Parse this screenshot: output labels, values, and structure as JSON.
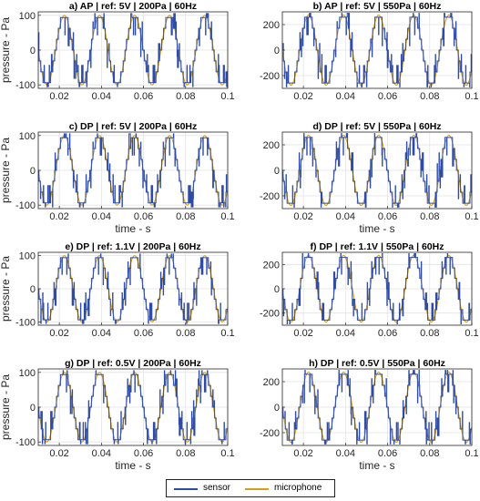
{
  "chart_data": [
    {
      "type": "line",
      "panel": "a",
      "title": "a) AP | ref: 5V | 200Pa | 60Hz",
      "xlabel": "",
      "ylabel": "pressure - Pa",
      "xlim": [
        0.01,
        0.1
      ],
      "ylim": [
        -110,
        110
      ],
      "xticks": [
        0.02,
        0.04,
        0.06,
        0.08,
        0.1
      ],
      "xtick_labels": [
        "0.02",
        "0.04",
        "0.06",
        "0.08",
        "0.1"
      ],
      "yticks": [
        -100,
        0,
        100
      ],
      "ytick_labels": [
        "-100",
        "0",
        "100"
      ],
      "grid": true,
      "amplitude": 100,
      "frequency_hz": 60,
      "series": [
        {
          "name": "sensor",
          "color": "#2E4BA6"
        },
        {
          "name": "microphone",
          "color": "#D4A017"
        }
      ]
    },
    {
      "type": "line",
      "panel": "b",
      "title": "b) AP | ref: 5V | 550Pa | 60Hz",
      "xlabel": "",
      "ylabel": "",
      "xlim": [
        0.01,
        0.1
      ],
      "ylim": [
        -300,
        300
      ],
      "xticks": [
        0.02,
        0.04,
        0.06,
        0.08,
        0.1
      ],
      "xtick_labels": [
        "0.02",
        "0.04",
        "0.06",
        "0.08",
        "0.1"
      ],
      "yticks": [
        -200,
        0,
        200
      ],
      "ytick_labels": [
        "-200",
        "0",
        "200"
      ],
      "grid": true,
      "amplitude": 275,
      "frequency_hz": 60,
      "series": [
        {
          "name": "sensor",
          "color": "#2E4BA6"
        },
        {
          "name": "microphone",
          "color": "#D4A017"
        }
      ]
    },
    {
      "type": "line",
      "panel": "c",
      "title": "c) DP | ref: 5V | 200Pa | 60Hz",
      "xlabel": "time - s",
      "ylabel": "pressure - Pa",
      "xlim": [
        0.01,
        0.1
      ],
      "ylim": [
        -110,
        110
      ],
      "xticks": [
        0.02,
        0.04,
        0.06,
        0.08,
        0.1
      ],
      "xtick_labels": [
        "0.02",
        "0.04",
        "0.06",
        "0.08",
        "0.1"
      ],
      "yticks": [
        -100,
        0,
        100
      ],
      "ytick_labels": [
        "-100",
        "0",
        "100"
      ],
      "grid": true,
      "amplitude": 100,
      "frequency_hz": 60,
      "series": [
        {
          "name": "sensor",
          "color": "#2E4BA6"
        },
        {
          "name": "microphone",
          "color": "#D4A017"
        }
      ]
    },
    {
      "type": "line",
      "panel": "d",
      "title": "d) DP | ref: 5V | 550Pa | 60Hz",
      "xlabel": "time - s",
      "ylabel": "",
      "xlim": [
        0.01,
        0.1
      ],
      "ylim": [
        -300,
        300
      ],
      "xticks": [
        0.02,
        0.04,
        0.06,
        0.08,
        0.1
      ],
      "xtick_labels": [
        "0.02",
        "0.04",
        "0.06",
        "0.08",
        "0.1"
      ],
      "yticks": [
        -200,
        0,
        200
      ],
      "ytick_labels": [
        "-200",
        "0",
        "200"
      ],
      "grid": true,
      "amplitude": 275,
      "frequency_hz": 60,
      "series": [
        {
          "name": "sensor",
          "color": "#2E4BA6"
        },
        {
          "name": "microphone",
          "color": "#D4A017"
        }
      ]
    },
    {
      "type": "line",
      "panel": "e",
      "title": "e) DP | ref: 1.1V | 200Pa | 60Hz",
      "xlabel": "",
      "ylabel": "pressure - Pa",
      "xlim": [
        0.01,
        0.1
      ],
      "ylim": [
        -110,
        110
      ],
      "xticks": [
        0.02,
        0.04,
        0.06,
        0.08,
        0.1
      ],
      "xtick_labels": [
        "0.02",
        "0.04",
        "0.06",
        "0.08",
        "0.1"
      ],
      "yticks": [
        -100,
        0,
        100
      ],
      "ytick_labels": [
        "-100",
        "0",
        "100"
      ],
      "grid": true,
      "amplitude": 100,
      "frequency_hz": 60,
      "series": [
        {
          "name": "sensor",
          "color": "#2E4BA6"
        },
        {
          "name": "microphone",
          "color": "#D4A017"
        }
      ]
    },
    {
      "type": "line",
      "panel": "f",
      "title": "f) DP | ref: 1.1V | 550Pa | 60Hz",
      "xlabel": "",
      "ylabel": "",
      "xlim": [
        0.01,
        0.1
      ],
      "ylim": [
        -300,
        300
      ],
      "xticks": [
        0.02,
        0.04,
        0.06,
        0.08,
        0.1
      ],
      "xtick_labels": [
        "0.02",
        "0.04",
        "0.06",
        "0.08",
        "0.1"
      ],
      "yticks": [
        -200,
        0,
        200
      ],
      "ytick_labels": [
        "-200",
        "0",
        "200"
      ],
      "grid": true,
      "amplitude": 275,
      "frequency_hz": 60,
      "series": [
        {
          "name": "sensor",
          "color": "#2E4BA6"
        },
        {
          "name": "microphone",
          "color": "#D4A017"
        }
      ]
    },
    {
      "type": "line",
      "panel": "g",
      "title": "g) DP | ref: 0.5V | 200Pa | 60Hz",
      "xlabel": "time - s",
      "ylabel": "pressure - Pa",
      "xlim": [
        0.01,
        0.1
      ],
      "ylim": [
        -110,
        110
      ],
      "xticks": [
        0.02,
        0.04,
        0.06,
        0.08,
        0.1
      ],
      "xtick_labels": [
        "0.02",
        "0.04",
        "0.06",
        "0.08",
        "0.1"
      ],
      "yticks": [
        -100,
        0,
        100
      ],
      "ytick_labels": [
        "-100",
        "0",
        "100"
      ],
      "grid": true,
      "amplitude": 100,
      "frequency_hz": 60,
      "series": [
        {
          "name": "sensor",
          "color": "#2E4BA6"
        },
        {
          "name": "microphone",
          "color": "#D4A017"
        }
      ]
    },
    {
      "type": "line",
      "panel": "h",
      "title": "h) DP | ref: 0.5V | 550Pa | 60Hz",
      "xlabel": "time - s",
      "ylabel": "",
      "xlim": [
        0.01,
        0.1
      ],
      "ylim": [
        -300,
        300
      ],
      "xticks": [
        0.02,
        0.04,
        0.06,
        0.08,
        0.1
      ],
      "xtick_labels": [
        "0.02",
        "0.04",
        "0.06",
        "0.08",
        "0.1"
      ],
      "yticks": [
        -200,
        0,
        200
      ],
      "ytick_labels": [
        "-200",
        "0",
        "200"
      ],
      "grid": true,
      "amplitude": 275,
      "frequency_hz": 60,
      "series": [
        {
          "name": "sensor",
          "color": "#2E4BA6"
        },
        {
          "name": "microphone",
          "color": "#D4A017"
        }
      ]
    }
  ],
  "legend": {
    "entries": [
      {
        "label": "sensor",
        "color": "#2E4BA6"
      },
      {
        "label": "microphone",
        "color": "#D4A017"
      }
    ]
  }
}
